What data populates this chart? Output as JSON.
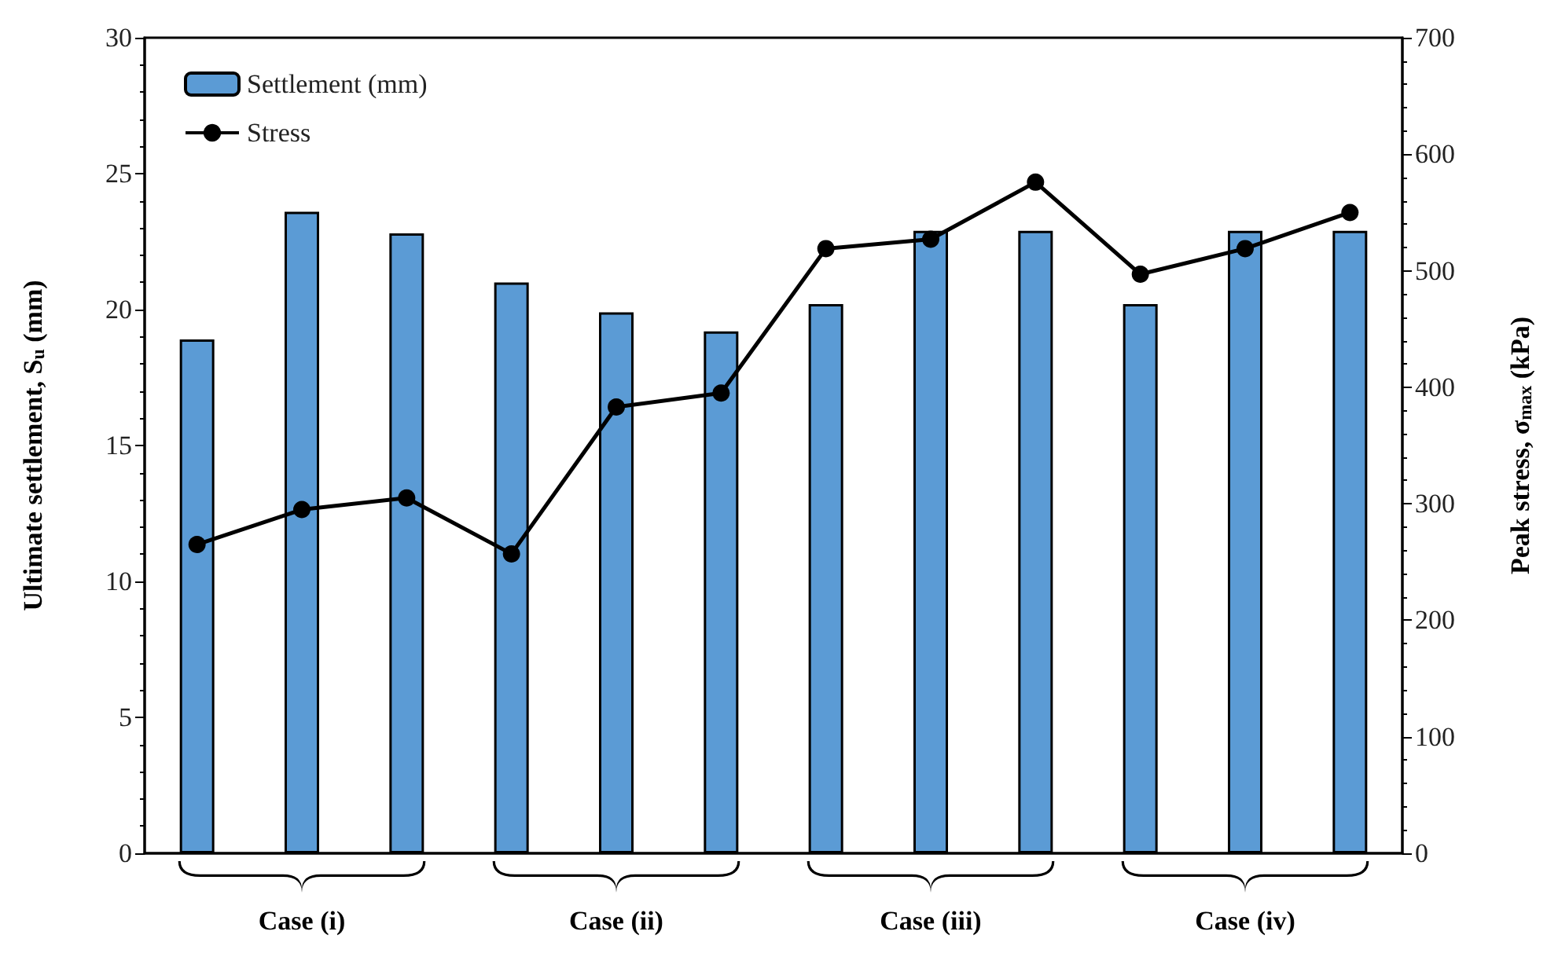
{
  "chart_data": {
    "type": "bar",
    "ylabel": "Ultimate settlement, S$_{u}$ (mm)",
    "y2label": "Peak stress, σ$_{max}$ (kPa)",
    "categories": [
      null,
      null,
      null,
      null,
      null,
      null,
      null,
      null,
      null,
      null,
      null,
      null
    ],
    "series": [
      {
        "name": "Settlement (mm)",
        "color": "#5b9bd5",
        "values": [
          18.9,
          23.6,
          22.8,
          21.0,
          19.9,
          19.2,
          20.2,
          22.9,
          22.9,
          20.2,
          22.9,
          22.9
        ]
      },
      {
        "name": "Stress",
        "type": "line",
        "axis": "y2",
        "color": "#000000",
        "marker": "circle",
        "values": [
          265,
          295,
          305,
          257,
          383,
          395,
          519,
          527,
          576,
          497,
          519,
          550
        ]
      }
    ],
    "ylim": [
      0,
      30
    ],
    "yticks": [
      0,
      5,
      10,
      15,
      20,
      25,
      30
    ],
    "y2lim": [
      0,
      700
    ],
    "y2ticks": [
      0,
      100,
      200,
      300,
      400,
      500,
      600,
      700
    ],
    "annotations": [
      "Case (i)",
      "Case (ii)",
      "Case (iii)",
      "Case (iv)"
    ],
    "grid": false,
    "legend": "top left"
  }
}
